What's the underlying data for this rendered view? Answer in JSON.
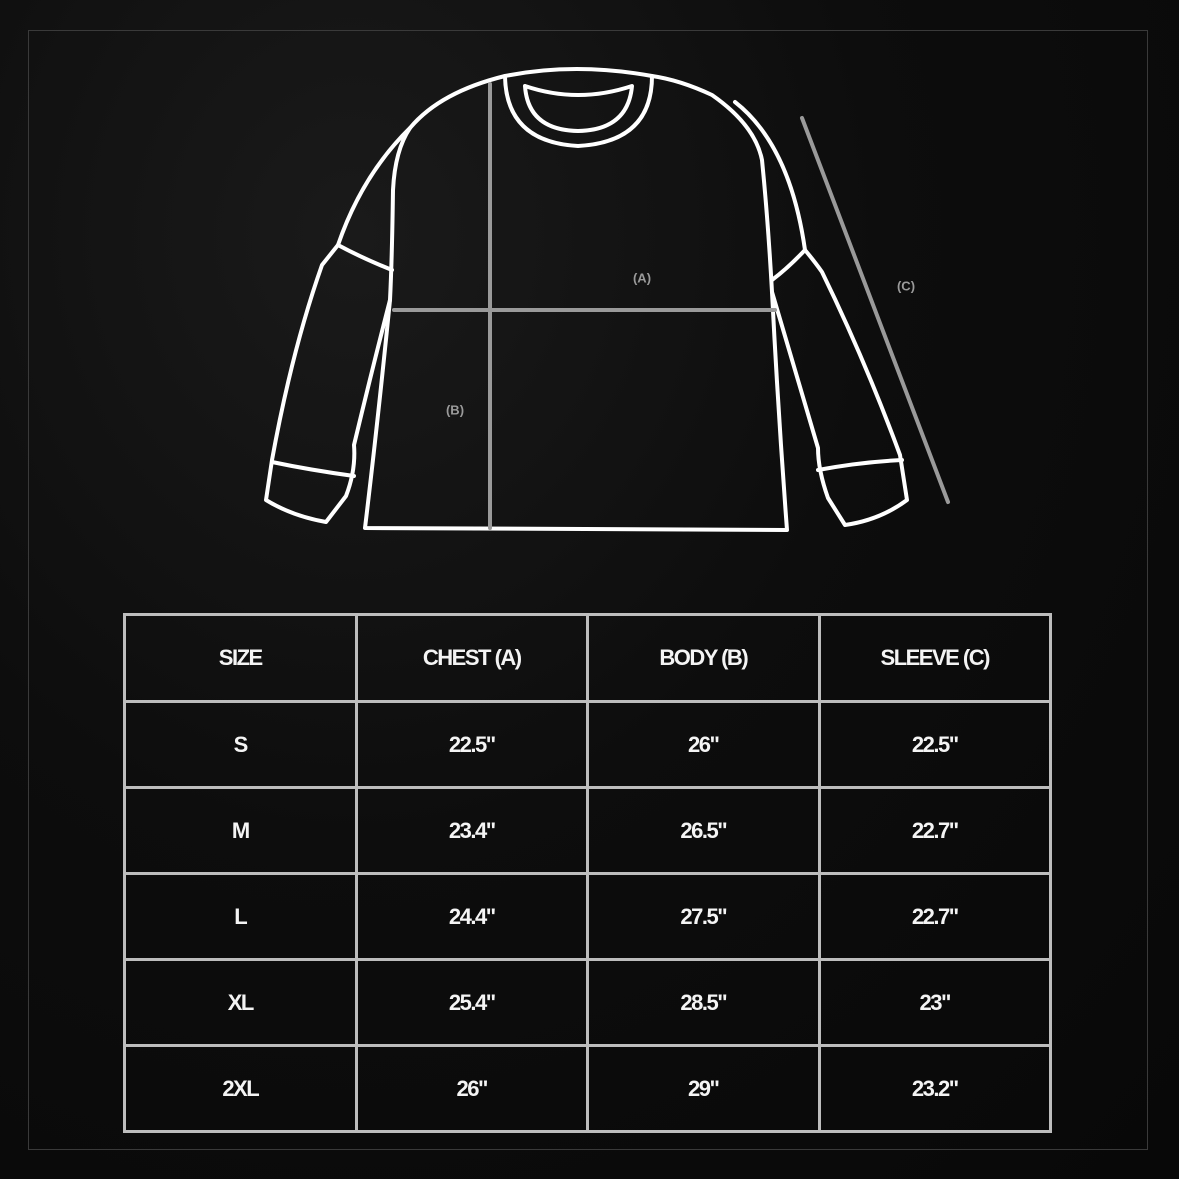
{
  "diagram": {
    "labels": {
      "chest": "(A)",
      "body": "(B)",
      "sleeve": "(C)"
    },
    "colors": {
      "outline": "#ffffff",
      "measure_line": "#9a9a9a",
      "background": "#0b0b0b"
    }
  },
  "table": {
    "headers": [
      "SIZE",
      "CHEST (A)",
      "BODY (B)",
      "SLEEVE (C)"
    ],
    "rows": [
      [
        "S",
        "22.5\"",
        "26\"",
        "22.5\""
      ],
      [
        "M",
        "23.4\"",
        "26.5\"",
        "22.7\""
      ],
      [
        "L",
        "24.4\"",
        "27.5\"",
        "22.7\""
      ],
      [
        "XL",
        "25.4\"",
        "28.5\"",
        "23\""
      ],
      [
        "2XL",
        "26\"",
        "29\"",
        "23.2\""
      ]
    ]
  }
}
